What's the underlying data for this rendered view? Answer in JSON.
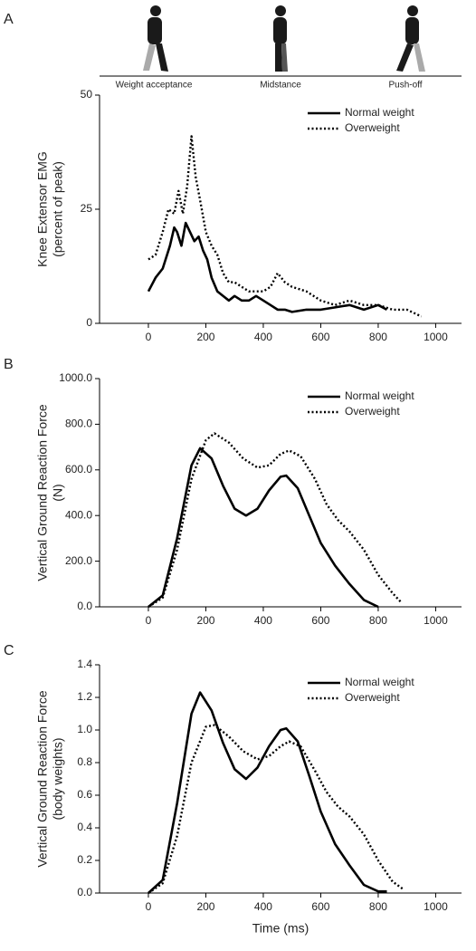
{
  "chart_data": [
    {
      "type": "line",
      "panel_label": "A",
      "ylabel": [
        "Knee Extensor EMG",
        "(percent of peak)"
      ],
      "phase_labels": [
        "Weight acceptance",
        "Midstance",
        "Push-off"
      ],
      "xlim": [
        -170,
        1090
      ],
      "xticks": [
        0,
        200,
        400,
        600,
        800,
        1000
      ],
      "ylim": [
        0,
        50
      ],
      "yticks": [
        0,
        25,
        50
      ],
      "legend": "upper right",
      "series": [
        {
          "name": "Normal weight",
          "color": "#000000",
          "linestyle": "solid",
          "x": [
            0,
            25,
            50,
            75,
            90,
            100,
            115,
            130,
            145,
            160,
            175,
            190,
            205,
            220,
            240,
            260,
            280,
            300,
            325,
            350,
            375,
            400,
            425,
            450,
            475,
            500,
            550,
            600,
            650,
            700,
            750,
            800,
            830
          ],
          "values": [
            7,
            10,
            12,
            17,
            21,
            20,
            17,
            22,
            20,
            18,
            19,
            16,
            14,
            10,
            7,
            6,
            5,
            6,
            5,
            5,
            6,
            5,
            4,
            3,
            3,
            2.5,
            3,
            3,
            3.5,
            4,
            3,
            4,
            3
          ]
        },
        {
          "name": "Overweight",
          "color": "#000000",
          "linestyle": "dotted",
          "x": [
            0,
            25,
            50,
            70,
            90,
            105,
            120,
            135,
            150,
            165,
            180,
            200,
            220,
            240,
            260,
            280,
            300,
            325,
            350,
            375,
            400,
            425,
            450,
            475,
            500,
            550,
            600,
            650,
            700,
            750,
            800,
            850,
            900,
            950
          ],
          "values": [
            14,
            15,
            20,
            25,
            24,
            29,
            24,
            30,
            41,
            32,
            27,
            20,
            17,
            15,
            11,
            9,
            9,
            8,
            7,
            7,
            7,
            8,
            11,
            9,
            8,
            7,
            5,
            4,
            5,
            4,
            4,
            3,
            3,
            1.5
          ]
        }
      ]
    },
    {
      "type": "line",
      "panel_label": "B",
      "ylabel": [
        "Vertical Ground Reaction Force",
        "(N)"
      ],
      "xlim": [
        -170,
        1090
      ],
      "xticks": [
        0,
        200,
        400,
        600,
        800,
        1000
      ],
      "ylim": [
        0,
        1000
      ],
      "yticks": [
        {
          "value": 0,
          "label": "0.0"
        },
        {
          "value": 200,
          "label": "200.0"
        },
        {
          "value": 400,
          "label": "400.0"
        },
        {
          "value": 600,
          "label": "600.0"
        },
        {
          "value": 800,
          "label": "800.0"
        },
        {
          "value": 1000,
          "label": "1000.0"
        }
      ],
      "legend": "upper right",
      "series": [
        {
          "name": "Normal weight",
          "color": "#000000",
          "linestyle": "solid",
          "x": [
            0,
            50,
            100,
            150,
            180,
            220,
            260,
            300,
            340,
            380,
            420,
            460,
            480,
            520,
            560,
            600,
            650,
            700,
            750,
            800
          ],
          "values": [
            0,
            50,
            300,
            620,
            695,
            650,
            530,
            430,
            400,
            430,
            510,
            570,
            575,
            520,
            400,
            280,
            180,
            100,
            30,
            0
          ]
        },
        {
          "name": "Overweight",
          "color": "#000000",
          "linestyle": "dotted",
          "x": [
            0,
            50,
            100,
            150,
            200,
            230,
            280,
            330,
            380,
            420,
            460,
            490,
            530,
            580,
            620,
            660,
            700,
            750,
            800,
            850,
            880
          ],
          "values": [
            0,
            40,
            250,
            560,
            730,
            760,
            720,
            650,
            610,
            620,
            670,
            685,
            660,
            560,
            450,
            380,
            330,
            250,
            140,
            60,
            20
          ]
        }
      ]
    },
    {
      "type": "line",
      "panel_label": "C",
      "ylabel": [
        "Vertical Ground Reaction Force",
        "(body weights)"
      ],
      "xlabel": "Time (ms)",
      "xlim": [
        -170,
        1090
      ],
      "xticks": [
        0,
        200,
        400,
        600,
        800,
        1000
      ],
      "ylim": [
        0,
        1.4
      ],
      "yticks": [
        {
          "value": 0,
          "label": "0.0"
        },
        0.2,
        0.4,
        0.6,
        0.8,
        {
          "value": 1,
          "label": "1.0"
        },
        1.2,
        1.4
      ],
      "legend": "upper right",
      "series": [
        {
          "name": "Normal weight",
          "color": "#000000",
          "linestyle": "solid",
          "x": [
            0,
            50,
            100,
            150,
            180,
            220,
            260,
            300,
            340,
            380,
            420,
            460,
            480,
            520,
            560,
            600,
            650,
            700,
            750,
            800,
            830
          ],
          "values": [
            0,
            0.08,
            0.55,
            1.1,
            1.23,
            1.12,
            0.92,
            0.76,
            0.7,
            0.77,
            0.9,
            1,
            1.01,
            0.93,
            0.72,
            0.5,
            0.3,
            0.17,
            0.05,
            0.01,
            0.01
          ]
        },
        {
          "name": "Overweight",
          "color": "#000000",
          "linestyle": "dotted",
          "x": [
            0,
            50,
            100,
            150,
            200,
            230,
            280,
            330,
            380,
            420,
            460,
            490,
            530,
            580,
            620,
            660,
            700,
            750,
            800,
            850,
            890
          ],
          "values": [
            0,
            0.06,
            0.35,
            0.8,
            1.02,
            1.03,
            0.96,
            0.87,
            0.82,
            0.84,
            0.9,
            0.93,
            0.9,
            0.75,
            0.62,
            0.53,
            0.47,
            0.36,
            0.2,
            0.07,
            0.02
          ]
        }
      ]
    }
  ]
}
